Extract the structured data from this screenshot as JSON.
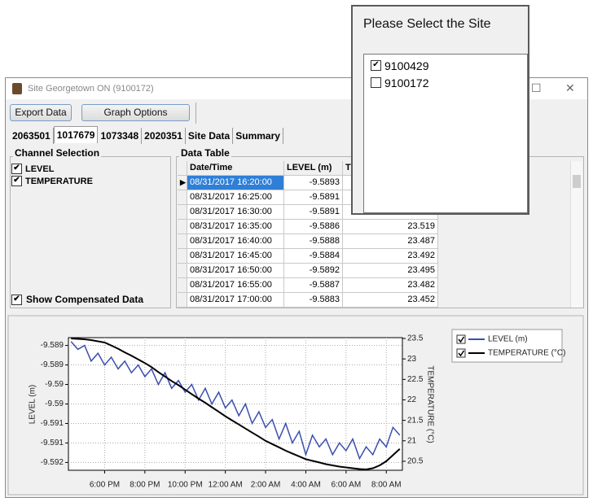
{
  "window": {
    "title": "Site Georgetown ON (9100172)"
  },
  "toolbar": {
    "buttons": [
      "Export Data",
      "Graph Options"
    ]
  },
  "tabs": [
    "2063501",
    "1017679",
    "1073348",
    "2020351",
    "Site Data",
    "Summary"
  ],
  "active_tab": 1,
  "channel_selection": {
    "title": "Channel Selection",
    "channels": [
      {
        "label": "LEVEL",
        "checked": true
      },
      {
        "label": "TEMPERATURE",
        "checked": true
      }
    ],
    "show_compensated": {
      "label": "Show Compensated Data",
      "checked": true
    }
  },
  "data_table": {
    "title": "Data Table",
    "columns": [
      "Date/Time",
      "LEVEL (m)",
      "TEMPERATURE (°C)"
    ],
    "selected_row": 0,
    "rows": [
      [
        "08/31/2017 16:20:00",
        -9.5893,
        null
      ],
      [
        "08/31/2017 16:25:00",
        -9.5891,
        null
      ],
      [
        "08/31/2017 16:30:00",
        -9.5891,
        null
      ],
      [
        "08/31/2017 16:35:00",
        -9.5886,
        23.519
      ],
      [
        "08/31/2017 16:40:00",
        -9.5888,
        23.487
      ],
      [
        "08/31/2017 16:45:00",
        -9.5884,
        23.492
      ],
      [
        "08/31/2017 16:50:00",
        -9.5892,
        23.495
      ],
      [
        "08/31/2017 16:55:00",
        -9.5887,
        23.482
      ],
      [
        "08/31/2017 17:00:00",
        -9.5883,
        23.452
      ]
    ]
  },
  "site_popup": {
    "title": "Please Select the Site",
    "sites": [
      {
        "label": "9100429",
        "checked": true
      },
      {
        "label": "9100172",
        "checked": false
      }
    ]
  },
  "chart": {
    "type": "line",
    "y_label": "LEVEL (m)",
    "y2_label": "TEMPERATURE (°C)",
    "grid": true,
    "x": [
      16.33,
      16.67,
      17,
      17.33,
      17.67,
      18,
      18.33,
      18.67,
      19,
      19.33,
      19.67,
      20,
      20.33,
      20.67,
      21,
      21.33,
      21.67,
      22,
      22.33,
      22.67,
      23,
      23.33,
      23.67,
      24,
      24.33,
      24.67,
      25,
      25.33,
      25.67,
      26,
      26.33,
      26.67,
      27,
      27.33,
      27.67,
      28,
      28.33,
      28.67,
      29,
      29.33,
      29.67,
      30,
      30.33,
      30.67,
      31,
      31.33,
      31.67,
      32,
      32.33,
      32.67
    ],
    "xlim": [
      16.2,
      32.8
    ],
    "xticks": [
      {
        "value": 18,
        "label": "6:00 PM"
      },
      {
        "value": 20,
        "label": "8:00 PM"
      },
      {
        "value": 22,
        "label": "10:00 PM"
      },
      {
        "value": 24,
        "label": "12:00 AM"
      },
      {
        "value": 26,
        "label": "2:00 AM"
      },
      {
        "value": 28,
        "label": "4:00 AM"
      },
      {
        "value": 30,
        "label": "6:00 AM"
      },
      {
        "value": 32,
        "label": "8:00 AM"
      }
    ],
    "ylim": [
      -9.5917,
      -9.5883
    ],
    "yticks": [
      {
        "value": -9.5885,
        "label": "-9.589"
      },
      {
        "value": -9.589,
        "label": "-9.589"
      },
      {
        "value": -9.5895,
        "label": "-9.59"
      },
      {
        "value": -9.59,
        "label": "-9.59"
      },
      {
        "value": -9.5905,
        "label": "-9.591"
      },
      {
        "value": -9.591,
        "label": "-9.591"
      },
      {
        "value": -9.5915,
        "label": "-9.592"
      }
    ],
    "y2lim": [
      20.28,
      23.52
    ],
    "y2ticks": [
      23.5,
      23,
      22.5,
      22,
      21.5,
      21,
      20.5
    ],
    "series": [
      {
        "name": "LEVEL (m)",
        "color": "#3b4fae",
        "values": [
          -9.5884,
          -9.5886,
          -9.5885,
          -9.5889,
          -9.5887,
          -9.589,
          -9.5888,
          -9.5891,
          -9.5889,
          -9.5892,
          -9.589,
          -9.5893,
          -9.5891,
          -9.5895,
          -9.5892,
          -9.5896,
          -9.5894,
          -9.5897,
          -9.5895,
          -9.5899,
          -9.5896,
          -9.59,
          -9.5897,
          -9.5901,
          -9.5899,
          -9.5903,
          -9.59,
          -9.5905,
          -9.5902,
          -9.5906,
          -9.5904,
          -9.5909,
          -9.5905,
          -9.591,
          -9.5907,
          -9.5913,
          -9.5908,
          -9.5911,
          -9.5909,
          -9.5913,
          -9.591,
          -9.5912,
          -9.5909,
          -9.5914,
          -9.5911,
          -9.5913,
          -9.5909,
          -9.5911,
          -9.5906,
          -9.5908
        ]
      },
      {
        "name": "TEMPERATURE (°C)",
        "color": "#000000",
        "axis": "y2",
        "values": [
          23.5,
          23.49,
          23.48,
          23.46,
          23.43,
          23.4,
          23.33,
          23.25,
          23.16,
          23.08,
          22.99,
          22.9,
          22.8,
          22.68,
          22.57,
          22.46,
          22.36,
          22.25,
          22.14,
          22.03,
          21.93,
          21.82,
          21.71,
          21.6,
          21.5,
          21.4,
          21.3,
          21.2,
          21.1,
          21,
          20.92,
          20.84,
          20.76,
          20.69,
          20.62,
          20.55,
          20.51,
          20.47,
          20.43,
          20.4,
          20.37,
          20.35,
          20.33,
          20.31,
          20.3,
          20.33,
          20.4,
          20.5,
          20.65,
          20.8
        ]
      }
    ]
  }
}
